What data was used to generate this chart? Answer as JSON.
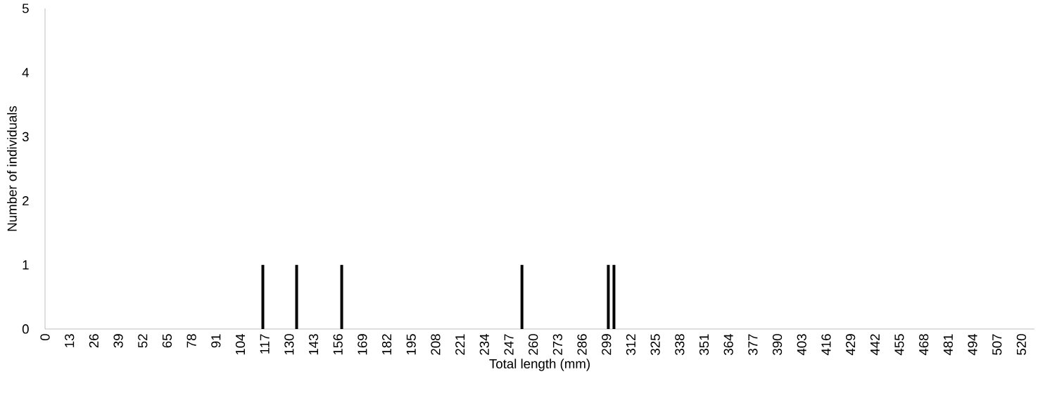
{
  "chart_data": {
    "type": "bar",
    "xlabel": "Total length (mm)",
    "ylabel": "Number of individuals",
    "x": [
      116,
      134,
      158,
      254,
      300,
      303
    ],
    "values": [
      1,
      1,
      1,
      1,
      1,
      1
    ],
    "color": "#000000",
    "xlim": [
      0,
      527
    ],
    "ylim": [
      0,
      5
    ],
    "xticks": [
      0,
      13,
      26,
      39,
      52,
      65,
      78,
      91,
      104,
      117,
      130,
      143,
      156,
      169,
      182,
      195,
      208,
      221,
      234,
      247,
      260,
      273,
      286,
      299,
      312,
      325,
      338,
      351,
      364,
      377,
      390,
      403,
      416,
      429,
      442,
      455,
      468,
      481,
      494,
      507,
      520
    ],
    "yticks": [
      0,
      1,
      2,
      3,
      4,
      5
    ]
  }
}
